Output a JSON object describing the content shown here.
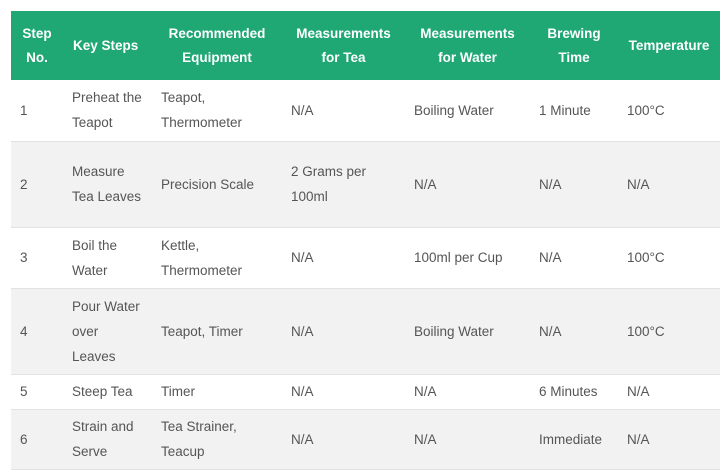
{
  "headers": [
    "Step No.",
    "Key Steps",
    "Recommended Equipment",
    "Measurements for Tea",
    "Measurements for Water",
    "Brewing Time",
    "Temperature"
  ],
  "rows": [
    [
      "1",
      "Preheat the Teapot",
      "Teapot, Thermometer",
      "N/A",
      "Boiling Water",
      "1 Minute",
      "100°C"
    ],
    [
      "2",
      "Measure Tea Leaves",
      "Precision Scale",
      "2 Grams per 100ml",
      "N/A",
      "N/A",
      "N/A"
    ],
    [
      "3",
      "Boil the Water",
      "Kettle, Thermometer",
      "N/A",
      "100ml per Cup",
      "N/A",
      "100°C"
    ],
    [
      "4",
      "Pour Water over Leaves",
      "Teapot, Timer",
      "N/A",
      "Boiling Water",
      "N/A",
      "100°C"
    ],
    [
      "5",
      "Steep Tea",
      "Timer",
      "N/A",
      "N/A",
      "6 Minutes",
      "N/A"
    ],
    [
      "6",
      "Strain and Serve",
      "Tea Strainer, Teacup",
      "N/A",
      "N/A",
      "Immediate",
      "N/A"
    ]
  ],
  "colors": {
    "header_bg": "#1fa774",
    "header_text": "#ffffff",
    "row_alt": "#f2f2f2"
  }
}
